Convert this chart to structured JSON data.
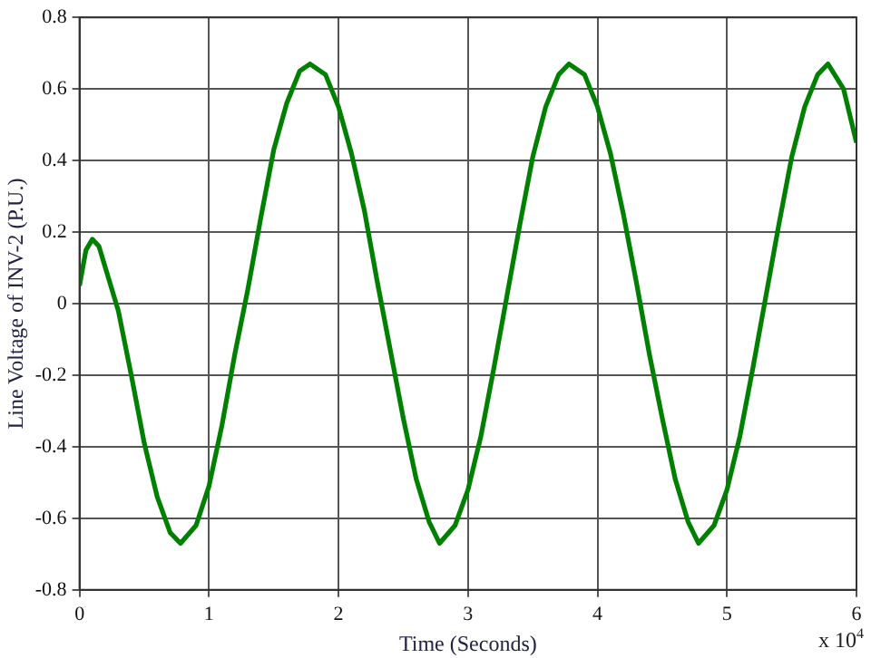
{
  "chart_data": {
    "type": "line",
    "xlabel": "Time (Seconds)",
    "ylabel": "Line Voltage of INV-2 (P.U.)",
    "annotations": [
      "x 10$^{4}$"
    ],
    "x": [
      0,
      0.05,
      0.1,
      0.15,
      0.2,
      0.3,
      0.4,
      0.5,
      0.6,
      0.7,
      0.78,
      0.9,
      1.0,
      1.1,
      1.2,
      1.3,
      1.4,
      1.5,
      1.6,
      1.7,
      1.78,
      1.9,
      2.0,
      2.1,
      2.2,
      2.3,
      2.4,
      2.5,
      2.6,
      2.7,
      2.78,
      2.9,
      3.0,
      3.1,
      3.2,
      3.3,
      3.4,
      3.5,
      3.6,
      3.7,
      3.78,
      3.9,
      4.0,
      4.1,
      4.2,
      4.3,
      4.4,
      4.5,
      4.6,
      4.7,
      4.78,
      4.9,
      5.0,
      5.1,
      5.2,
      5.3,
      5.4,
      5.5,
      5.6,
      5.7,
      5.78,
      5.9,
      6.0
    ],
    "series": [
      {
        "color": "#008000",
        "values": [
          0.05,
          0.15,
          0.18,
          0.16,
          0.1,
          -0.02,
          -0.2,
          -0.39,
          -0.54,
          -0.64,
          -0.67,
          -0.62,
          -0.51,
          -0.34,
          -0.14,
          0.04,
          0.24,
          0.43,
          0.56,
          0.65,
          0.67,
          0.64,
          0.55,
          0.42,
          0.26,
          0.06,
          -0.13,
          -0.32,
          -0.49,
          -0.61,
          -0.67,
          -0.62,
          -0.52,
          -0.37,
          -0.18,
          0.02,
          0.22,
          0.41,
          0.55,
          0.64,
          0.67,
          0.64,
          0.55,
          0.42,
          0.25,
          0.06,
          -0.14,
          -0.32,
          -0.49,
          -0.61,
          -0.67,
          -0.62,
          -0.52,
          -0.37,
          -0.18,
          0.02,
          0.22,
          0.41,
          0.55,
          0.64,
          0.67,
          0.6,
          0.45
        ]
      }
    ],
    "xlim": [
      0,
      6
    ],
    "xticks": [
      0,
      1,
      2,
      3,
      4,
      5,
      6
    ],
    "ylim": [
      -0.8,
      0.8
    ],
    "yticks": [
      -0.8,
      -0.6,
      -0.4,
      -0.2,
      0,
      0.2,
      0.4,
      0.6,
      0.8
    ],
    "grid": true,
    "legend": false,
    "marker": "none",
    "line_style": "solid"
  }
}
